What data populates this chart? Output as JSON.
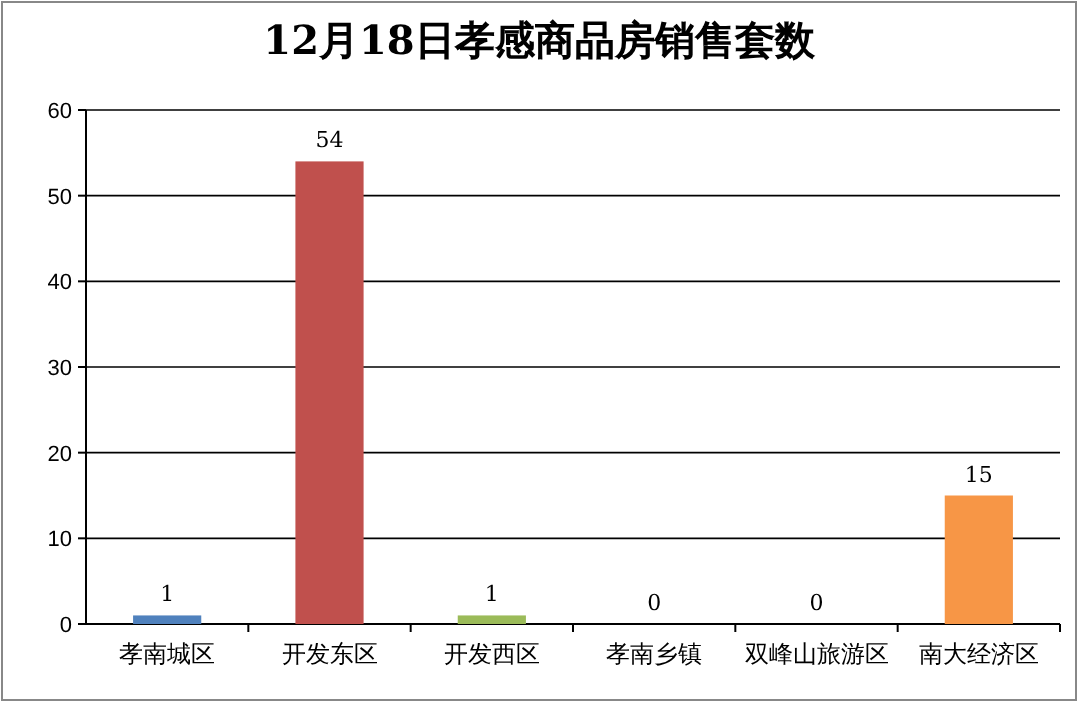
{
  "chart_data": {
    "type": "bar",
    "title": "12月18日孝感商品房销售套数",
    "categories": [
      "孝南城区",
      "开发东区",
      "开发西区",
      "孝南乡镇",
      "双峰山旅游区",
      "南大经济区"
    ],
    "values": [
      1,
      54,
      1,
      0,
      0,
      15
    ],
    "colors": [
      "#4f81bd",
      "#c0504d",
      "#9bbb59",
      "#8064a2",
      "#4bacc6",
      "#f79646"
    ],
    "ylim": [
      0,
      60
    ],
    "yticks": [
      0,
      10,
      20,
      30,
      40,
      50,
      60
    ],
    "grid": "y",
    "data_labels": true
  }
}
